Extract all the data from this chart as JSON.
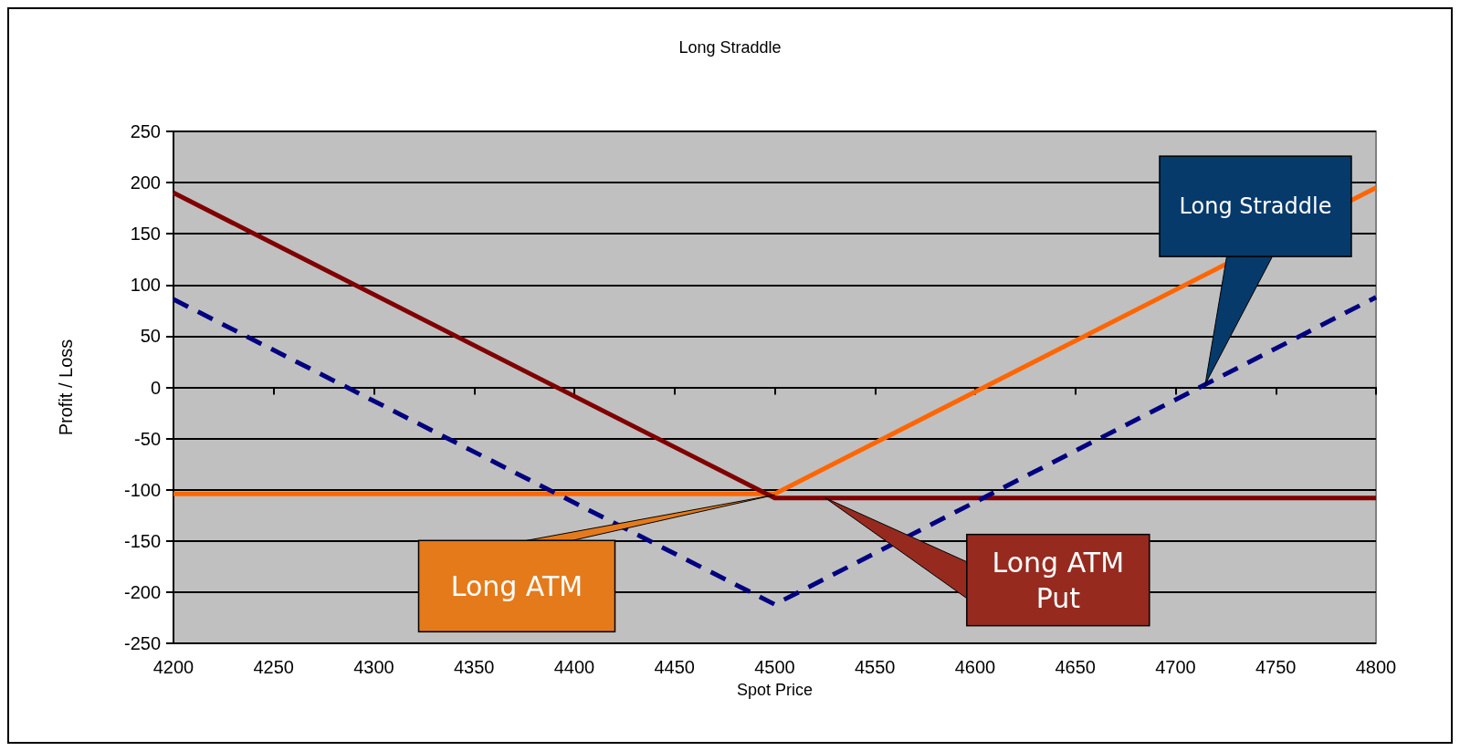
{
  "chart_data": {
    "type": "line",
    "title": "Long Straddle",
    "xlabel": "Spot Price",
    "ylabel": "Profit / Loss",
    "xlim": [
      4200,
      4800
    ],
    "xticks": [
      4200,
      4250,
      4300,
      4350,
      4400,
      4450,
      4500,
      4550,
      4600,
      4650,
      4700,
      4750,
      4800
    ],
    "ylim": [
      -250,
      250
    ],
    "yticks": [
      -250,
      -200,
      -150,
      -100,
      -50,
      0,
      50,
      100,
      150,
      200,
      250
    ],
    "grid": "y",
    "marker": "none",
    "series": [
      {
        "color": "#ff6600",
        "x": [
          4200,
          4500,
          4800
        ],
        "values": [
          -104,
          -104,
          195
        ],
        "line_style": "solid"
      },
      {
        "color": "#800000",
        "x": [
          4200,
          4500,
          4800
        ],
        "values": [
          190,
          -108,
          -108
        ],
        "line_style": "solid"
      },
      {
        "color": "#000080",
        "x": [
          4200,
          4500,
          4800
        ],
        "values": [
          86,
          -212,
          88
        ],
        "line_style": "dashed"
      }
    ],
    "annotations": [
      "Long Straddle",
      {
        "text": "Long ATM",
        "x": 4500,
        "y": -105
      },
      "Long ATM Put"
    ]
  }
}
